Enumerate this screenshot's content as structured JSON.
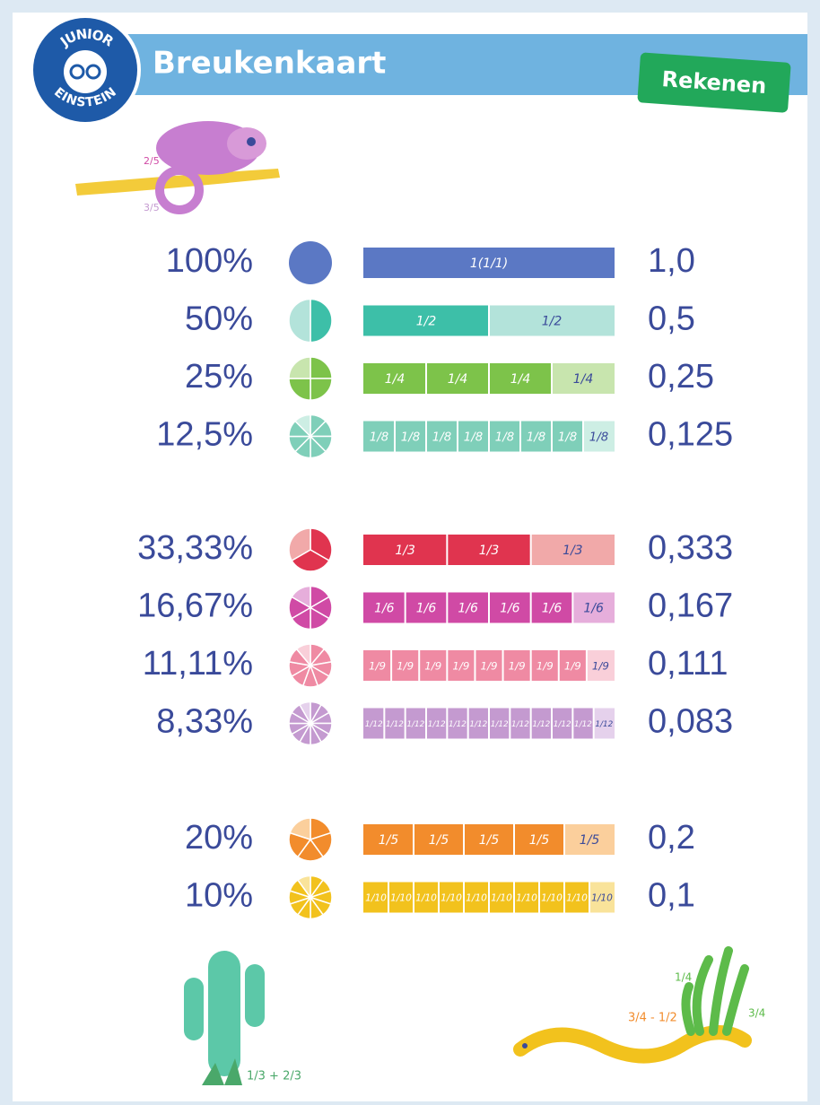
{
  "header": {
    "logo_top": "JUNIOR",
    "logo_bottom": "EINSTEIN",
    "title": "Breukenkaart",
    "tag": "Rekenen"
  },
  "groups": [
    [
      {
        "percent": "100%",
        "parts": 1,
        "segment_label": "1(1/1)",
        "decimal": "1,0",
        "color": "#5b78c4",
        "light": "#5b78c4"
      },
      {
        "percent": "50%",
        "parts": 2,
        "segment_label": "1/2",
        "decimal": "0,5",
        "color": "#3dbfa8",
        "light": "#b3e3da"
      },
      {
        "percent": "25%",
        "parts": 4,
        "segment_label": "1/4",
        "decimal": "0,25",
        "color": "#7dc34a",
        "light": "#c8e5ae"
      },
      {
        "percent": "12,5%",
        "parts": 8,
        "segment_label": "1/8",
        "decimal": "0,125",
        "color": "#7fcfb9",
        "light": "#cdeee4"
      }
    ],
    [
      {
        "percent": "33,33%",
        "parts": 3,
        "segment_label": "1/3",
        "decimal": "0,333",
        "color": "#e0344f",
        "light": "#f1a9a9"
      },
      {
        "percent": "16,67%",
        "parts": 6,
        "segment_label": "1/6",
        "decimal": "0,167",
        "color": "#d04aa5",
        "light": "#e6aedb"
      },
      {
        "percent": "11,11%",
        "parts": 9,
        "segment_label": "1/9",
        "decimal": "0,111",
        "color": "#ef8aa3",
        "light": "#f9cfd9"
      },
      {
        "percent": "8,33%",
        "parts": 12,
        "segment_label": "1/12",
        "decimal": "0,083",
        "color": "#c49ad0",
        "light": "#e5d1ec"
      }
    ],
    [
      {
        "percent": "20%",
        "parts": 5,
        "segment_label": "1/5",
        "decimal": "0,2",
        "color": "#f28c2c",
        "light": "#fbcf9c"
      },
      {
        "percent": "10%",
        "parts": 10,
        "segment_label": "1/10",
        "decimal": "0,1",
        "color": "#f2c21d",
        "light": "#f9e39a"
      }
    ]
  ],
  "illustrations": {
    "chameleon_top": "2/5",
    "chameleon_bottom": "3/5",
    "cactus": "1/3 + 2/3",
    "snake": "3/4 - 1/2",
    "grass_top": "1/4",
    "grass_side": "3/4"
  }
}
